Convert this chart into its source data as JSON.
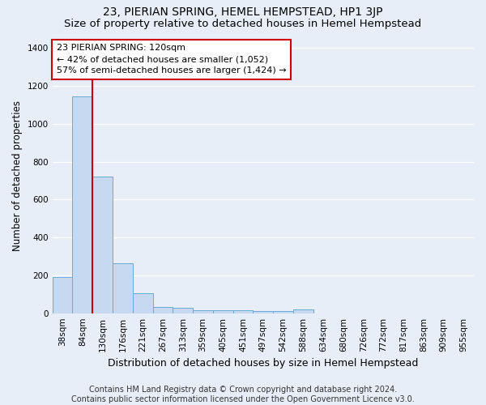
{
  "title": "23, PIERIAN SPRING, HEMEL HEMPSTEAD, HP1 3JP",
  "subtitle": "Size of property relative to detached houses in Hemel Hempstead",
  "xlabel": "Distribution of detached houses by size in Hemel Hempstead",
  "ylabel": "Number of detached properties",
  "footer_line1": "Contains HM Land Registry data © Crown copyright and database right 2024.",
  "footer_line2": "Contains public sector information licensed under the Open Government Licence v3.0.",
  "categories": [
    "38sqm",
    "84sqm",
    "130sqm",
    "176sqm",
    "221sqm",
    "267sqm",
    "313sqm",
    "359sqm",
    "405sqm",
    "451sqm",
    "497sqm",
    "542sqm",
    "588sqm",
    "634sqm",
    "680sqm",
    "726sqm",
    "772sqm",
    "817sqm",
    "863sqm",
    "909sqm",
    "955sqm"
  ],
  "bar_heights": [
    190,
    1145,
    720,
    265,
    107,
    32,
    27,
    16,
    14,
    14,
    13,
    13,
    20,
    0,
    0,
    0,
    0,
    0,
    0,
    0,
    0
  ],
  "bar_color": "#c6d9f0",
  "bar_edge_color": "#6aaad4",
  "annotation_text_line1": "23 PIERIAN SPRING: 120sqm",
  "annotation_text_line2": "← 42% of detached houses are smaller (1,052)",
  "annotation_text_line3": "57% of semi-detached houses are larger (1,424) →",
  "annotation_box_color": "white",
  "annotation_box_edge_color": "#cc0000",
  "vline_color": "#cc0000",
  "vline_x_index": 1.5,
  "ylim": [
    0,
    1450
  ],
  "yticks": [
    0,
    200,
    400,
    600,
    800,
    1000,
    1200,
    1400
  ],
  "background_color": "#e8eef8",
  "title_fontsize": 10,
  "subtitle_fontsize": 9.5,
  "ylabel_fontsize": 8.5,
  "xlabel_fontsize": 9,
  "tick_fontsize": 7.5,
  "annotation_fontsize": 8,
  "footer_fontsize": 7
}
